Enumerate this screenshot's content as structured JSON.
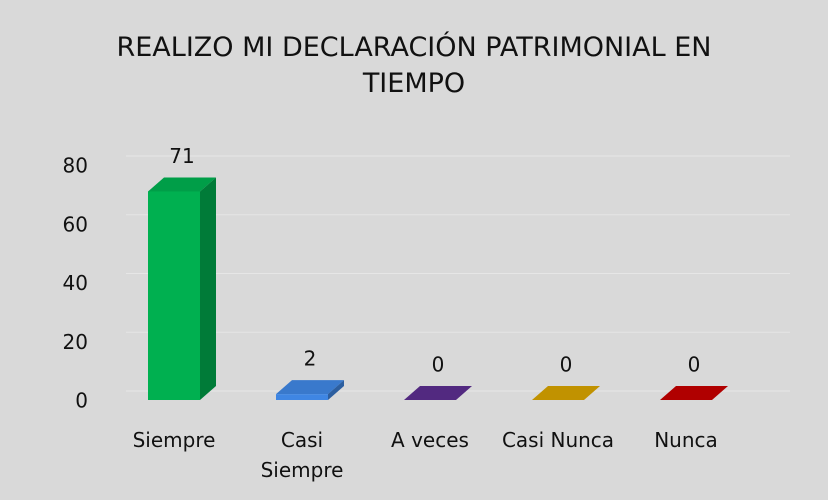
{
  "chart_data": {
    "type": "bar3d",
    "title": "REALIZO MI DECLARACIÓN PATRIMONIAL EN TIEMPO",
    "categories": [
      "Siempre",
      "Casi Siempre",
      "A veces",
      "Casi Nunca",
      "Nunca"
    ],
    "values": [
      71,
      2,
      0,
      0,
      0
    ],
    "colors": [
      "#00b050",
      "#3f86e3",
      "#5b2d8e",
      "#d6a200",
      "#c40000"
    ],
    "ylim": [
      0,
      80
    ],
    "yticks": [
      0,
      20,
      40,
      60,
      80
    ],
    "grid": true
  }
}
